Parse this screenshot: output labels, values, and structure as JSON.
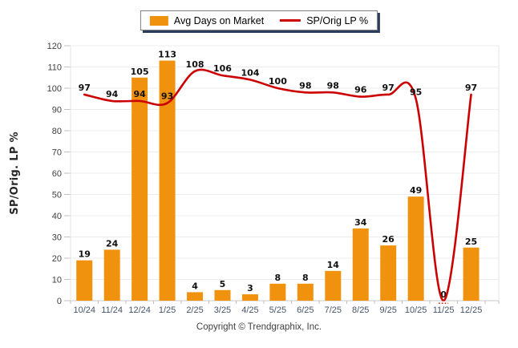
{
  "legend": {
    "items": [
      {
        "label": "Avg Days on Market",
        "type": "bar",
        "color": "#F0920E"
      },
      {
        "label": "SP/Orig LP %",
        "type": "line",
        "color": "#CC0000"
      }
    ]
  },
  "footer": {
    "copyright": "Copyright © Trendgraphix, Inc."
  },
  "chart_data": {
    "type": "combo-bar-line",
    "categories": [
      "10/24",
      "11/24",
      "12/24",
      "1/25",
      "2/25",
      "3/25",
      "4/25",
      "5/25",
      "6/25",
      "7/25",
      "8/25",
      "9/25",
      "10/25",
      "11/25",
      "12/25"
    ],
    "series": [
      {
        "name": "Avg Days on Market",
        "type": "bar",
        "color": "#F0920E",
        "values": [
          19,
          24,
          105,
          113,
          4,
          5,
          3,
          8,
          8,
          14,
          34,
          26,
          49,
          0,
          25
        ]
      },
      {
        "name": "SP/Orig LP %",
        "type": "line",
        "color": "#CC0000",
        "values": [
          97,
          94,
          94,
          93,
          108,
          106,
          104,
          100,
          98,
          98,
          96,
          97,
          95,
          0,
          97
        ],
        "hidden_label_indices": [
          13
        ]
      }
    ],
    "title": "",
    "xlabel": "",
    "ylabel": "SP/Orig. LP %",
    "ylim": [
      0,
      120
    ],
    "ytick_step": 10,
    "grid": true,
    "legend_position": "top-center"
  },
  "style": {
    "grid_color": "#ECECEC",
    "axis_color": "#C9C9C9",
    "tick_color": "#C0C0C0",
    "border_color": "#E6E6E6",
    "ytick_label_color": "#404040",
    "xtick_label_color": "#44546A",
    "data_label_color": "#111111",
    "ylabel_color": "#262626"
  }
}
